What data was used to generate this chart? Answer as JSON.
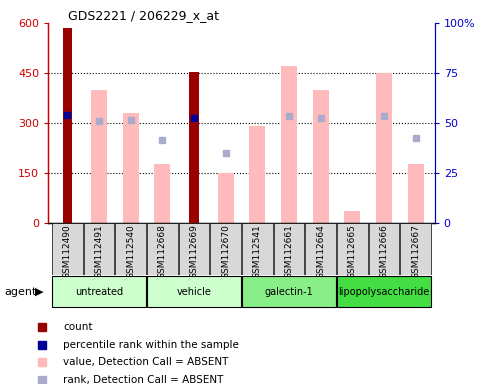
{
  "title": "GDS2221 / 206229_x_at",
  "samples": [
    "GSM112490",
    "GSM112491",
    "GSM112540",
    "GSM112668",
    "GSM112669",
    "GSM112670",
    "GSM112541",
    "GSM112661",
    "GSM112664",
    "GSM112665",
    "GSM112666",
    "GSM112667"
  ],
  "count_values": [
    585,
    null,
    null,
    null,
    453,
    null,
    null,
    null,
    null,
    null,
    null,
    null
  ],
  "count_color": "#990000",
  "percentile_rank_values": [
    325,
    null,
    null,
    null,
    315,
    null,
    null,
    null,
    null,
    null,
    null,
    null
  ],
  "percentile_rank_color": "#000099",
  "absent_value_bars": [
    null,
    400,
    330,
    175,
    null,
    150,
    290,
    470,
    400,
    35,
    450,
    175
  ],
  "absent_value_color": "#ffbbbb",
  "absent_rank_dots": [
    null,
    305,
    308,
    248,
    null,
    210,
    null,
    320,
    315,
    null,
    320,
    255
  ],
  "absent_rank_color": "#aaaacc",
  "ylim": [
    0,
    600
  ],
  "yticks": [
    0,
    150,
    300,
    450,
    600
  ],
  "ytick_labels": [
    "0",
    "150",
    "300",
    "450",
    "600"
  ],
  "y2lim": [
    0,
    100
  ],
  "y2ticks": [
    0,
    25,
    50,
    75,
    100
  ],
  "y2tick_labels": [
    "0",
    "25",
    "50",
    "75",
    "100%"
  ],
  "tick_color_left": "#cc0000",
  "tick_color_right": "#0000cc",
  "groups": [
    {
      "name": "untreated",
      "start": 0,
      "end": 2,
      "color": "#ccffcc"
    },
    {
      "name": "vehicle",
      "start": 3,
      "end": 5,
      "color": "#ccffcc"
    },
    {
      "name": "galectin-1",
      "start": 6,
      "end": 8,
      "color": "#88ee88"
    },
    {
      "name": "lipopolysaccharide",
      "start": 9,
      "end": 11,
      "color": "#44dd44"
    }
  ],
  "legend_items": [
    {
      "color": "#990000",
      "label": "count"
    },
    {
      "color": "#000099",
      "label": "percentile rank within the sample"
    },
    {
      "color": "#ffbbbb",
      "label": "value, Detection Call = ABSENT"
    },
    {
      "color": "#aaaacc",
      "label": "rank, Detection Call = ABSENT"
    }
  ],
  "figsize": [
    4.83,
    3.84
  ],
  "dpi": 100
}
